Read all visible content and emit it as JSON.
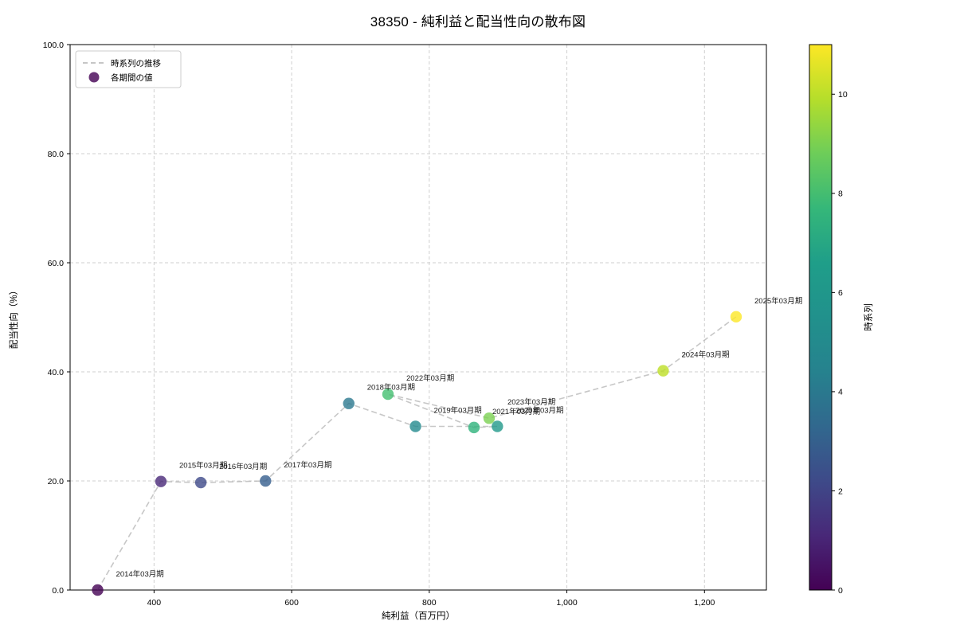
{
  "title": "38350 - 純利益と配当性向の散布図",
  "chart_data": {
    "type": "scatter",
    "title": "38350 - 純利益と配当性向の散布図",
    "xlabel": "純利益（百万円）",
    "ylabel": "配当性向（%）",
    "xlim": [
      278,
      1290
    ],
    "ylim": [
      0,
      100
    ],
    "grid": true,
    "x_ticks": [
      {
        "v": 400,
        "label": "400"
      },
      {
        "v": 600,
        "label": "600"
      },
      {
        "v": 800,
        "label": "800"
      },
      {
        "v": 1000,
        "label": "1,000"
      },
      {
        "v": 1200,
        "label": "1,200"
      }
    ],
    "y_ticks": [
      {
        "v": 0,
        "label": "0.0"
      },
      {
        "v": 20,
        "label": "20.0"
      },
      {
        "v": 40,
        "label": "40.0"
      },
      {
        "v": 60,
        "label": "60.0"
      },
      {
        "v": 80,
        "label": "80.0"
      },
      {
        "v": 100,
        "label": "100.0"
      }
    ],
    "legend": {
      "position": "upper-left",
      "items": [
        {
          "type": "line",
          "label": "時系列の推移",
          "color": "#b4b4b4"
        },
        {
          "type": "marker",
          "label": "各期間の値",
          "color": "#440154"
        }
      ]
    },
    "series_line": {
      "style": "dashed",
      "color": "#b4b4b4"
    },
    "points": [
      {
        "label": "2014年03月期",
        "x": 318,
        "y": 0.0,
        "t": 0,
        "color": "#440154"
      },
      {
        "label": "2015年03月期",
        "x": 410,
        "y": 19.9,
        "t": 1,
        "color": "#482878"
      },
      {
        "label": "2016年03月期",
        "x": 468,
        "y": 19.7,
        "t": 2,
        "color": "#3f4a8a"
      },
      {
        "label": "2017年03月期",
        "x": 562,
        "y": 20.0,
        "t": 3,
        "color": "#355e8d"
      },
      {
        "label": "2018年03月期",
        "x": 683,
        "y": 34.2,
        "t": 4,
        "color": "#2a788e"
      },
      {
        "label": "2019年03月期",
        "x": 780,
        "y": 30.0,
        "t": 5,
        "color": "#238a8d"
      },
      {
        "label": "2020年03月期",
        "x": 899,
        "y": 30.0,
        "t": 6,
        "color": "#21988a"
      },
      {
        "label": "2021年03月期",
        "x": 865,
        "y": 29.8,
        "t": 7,
        "color": "#2eb37c"
      },
      {
        "label": "2022年03月期",
        "x": 740,
        "y": 35.9,
        "t": 8,
        "color": "#44bf70"
      },
      {
        "label": "2023年03月期",
        "x": 887,
        "y": 31.5,
        "t": 9,
        "color": "#7ad151"
      },
      {
        "label": "2024年03月期",
        "x": 1140,
        "y": 40.2,
        "t": 10,
        "color": "#bddf26"
      },
      {
        "label": "2025年03月期",
        "x": 1246,
        "y": 50.1,
        "t": 11,
        "color": "#fde725"
      }
    ],
    "colorbar": {
      "label": "時系列",
      "min": 0,
      "max": 11,
      "ticks": [
        {
          "v": 0,
          "label": "0"
        },
        {
          "v": 2,
          "label": "2"
        },
        {
          "v": 4,
          "label": "4"
        },
        {
          "v": 6,
          "label": "6"
        },
        {
          "v": 8,
          "label": "8"
        },
        {
          "v": 10,
          "label": "10"
        }
      ],
      "colormap": "viridis",
      "gradient": [
        {
          "offset": 0.0,
          "color": "#440154"
        },
        {
          "offset": 0.1,
          "color": "#482878"
        },
        {
          "offset": 0.2,
          "color": "#3e4a89"
        },
        {
          "offset": 0.3,
          "color": "#31688e"
        },
        {
          "offset": 0.4,
          "color": "#26828e"
        },
        {
          "offset": 0.5,
          "color": "#21918c"
        },
        {
          "offset": 0.6,
          "color": "#1f9e89"
        },
        {
          "offset": 0.7,
          "color": "#35b779"
        },
        {
          "offset": 0.8,
          "color": "#6dcd59"
        },
        {
          "offset": 0.9,
          "color": "#b5de2b"
        },
        {
          "offset": 1.0,
          "color": "#fde725"
        }
      ]
    }
  }
}
